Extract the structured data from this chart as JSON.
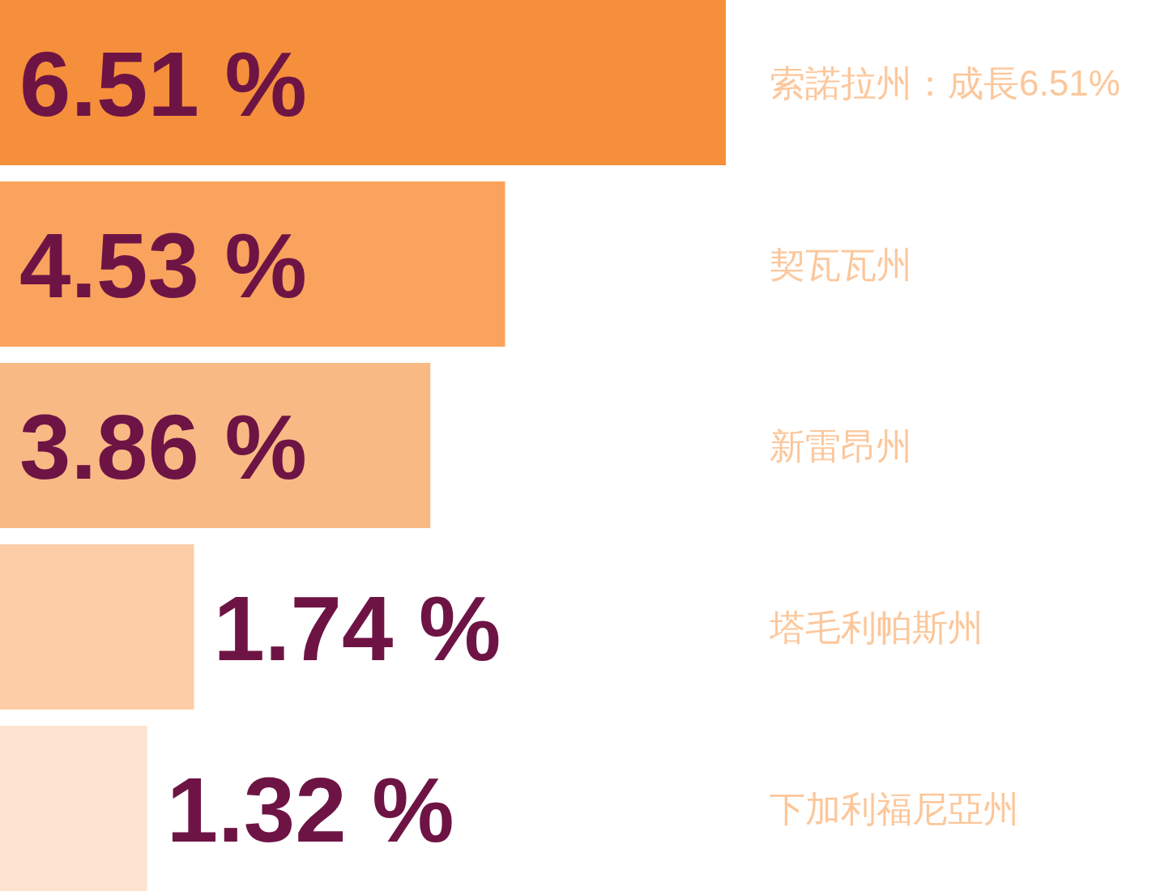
{
  "chart_data": {
    "type": "bar",
    "orientation": "horizontal",
    "categories": [
      "索諾拉州：成長6.51%",
      "契瓦瓦州",
      "新雷昂州",
      "塔毛利帕斯州",
      "下加利福尼亞州"
    ],
    "values": [
      6.51,
      4.53,
      3.86,
      1.74,
      1.32
    ],
    "colors": [
      "#f58f3b",
      "#f9a35e",
      "#f9b984",
      "#fccda6",
      "#fde3cf"
    ],
    "value_labels": [
      "6.51 %",
      "4.53 %",
      "3.86 %",
      "1.74 %",
      "1.32 %"
    ],
    "tick_labels": "y"
  }
}
